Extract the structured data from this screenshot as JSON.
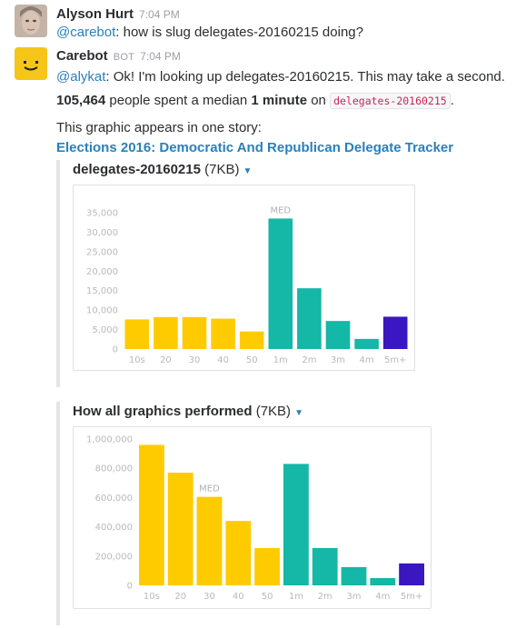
{
  "message1": {
    "author": "Alyson Hurt",
    "time": "7:04 PM",
    "mention": "@carebot",
    "text": ": how is slug delegates-20160215 doing?"
  },
  "message2": {
    "author": "Carebot",
    "badge": "BOT",
    "time": "7:04 PM",
    "mention": "@alykat",
    "text": ": Ok! I'm looking up delegates-20160215. This may take a second.",
    "stat_count": "105,464",
    "stat_text1": " people spent a median ",
    "stat_median": "1 minute",
    "stat_text2": " on ",
    "stat_slug": "delegates-20160215",
    "stat_end": ".",
    "stories_intro": "This graphic appears in one story:",
    "story_link": "Elections 2016: Democratic And Republican Delegate Tracker"
  },
  "attachment1": {
    "name": "delegates-20160215",
    "size": " (7KB)"
  },
  "attachment2": {
    "name": "How all graphics performed",
    "size": " (7KB)"
  },
  "colors": {
    "yellow": "#fecb00",
    "teal": "#15b7a6",
    "purple": "#3a17c0",
    "link": "#2a80b9"
  },
  "chart_data": [
    {
      "type": "bar",
      "categories": [
        "10s",
        "20",
        "30",
        "40",
        "50",
        "1m",
        "2m",
        "3m",
        "4m",
        "5m+"
      ],
      "values": [
        7600,
        8200,
        8200,
        7800,
        4500,
        33500,
        15600,
        7200,
        2600,
        8300
      ],
      "bar_groups": [
        "yellow",
        "yellow",
        "yellow",
        "yellow",
        "yellow",
        "teal",
        "teal",
        "teal",
        "teal",
        "purple"
      ],
      "y_ticks": [
        "0",
        "5,000",
        "10,000",
        "15,000",
        "20,000",
        "25,000",
        "30,000",
        "35,000"
      ],
      "ylim": [
        0,
        35000
      ],
      "median_label": "MED",
      "median_category": "1m"
    },
    {
      "type": "bar",
      "categories": [
        "10s",
        "20",
        "30",
        "40",
        "50",
        "1m",
        "2m",
        "3m",
        "4m",
        "5m+"
      ],
      "values": [
        960000,
        770000,
        605000,
        440000,
        255000,
        830000,
        255000,
        125000,
        50000,
        150000
      ],
      "bar_groups": [
        "yellow",
        "yellow",
        "yellow",
        "yellow",
        "yellow",
        "teal",
        "teal",
        "teal",
        "teal",
        "purple"
      ],
      "y_ticks": [
        "0",
        "200,000",
        "400,000",
        "600,000",
        "800,000",
        "1,000,000"
      ],
      "ylim": [
        0,
        1000000
      ],
      "median_label": "MED",
      "median_category": "30"
    }
  ]
}
